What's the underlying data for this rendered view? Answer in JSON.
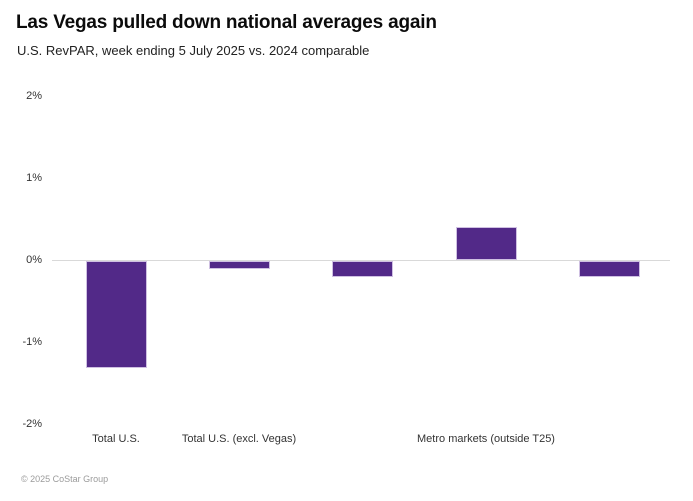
{
  "header": {
    "title": "Las Vegas pulled down national averages again",
    "subtitle": "U.S. RevPAR, week ending 5 July 2025 vs. 2024 comparable"
  },
  "footer": {
    "copyright": "© 2025 CoStar Group"
  },
  "colors": {
    "bar": "#522988",
    "bar_border": "#cfc0e2",
    "axis_line": "#d9d9d9",
    "title_text": "#0b0b0b",
    "tick_text": "#333333",
    "footer_text": "#9b9b9b",
    "background": "#ffffff"
  },
  "chart_data": {
    "type": "bar",
    "title": "Las Vegas pulled down national averages again",
    "subtitle": "U.S. RevPAR, week ending 5 July 2025 vs. 2024 comparable",
    "categories": [
      "Total U.S.",
      "Total U.S. (excl. Vegas)",
      "",
      "Metro markets (outside T25)",
      ""
    ],
    "values": [
      -1.3,
      -0.1,
      -0.2,
      0.4,
      -0.2
    ],
    "unit": "%",
    "xlabel": "",
    "ylabel": "",
    "ylim": [
      -2,
      2
    ],
    "yticks": [
      2,
      1,
      0,
      -1,
      -2
    ],
    "ytick_labels": [
      "2%",
      "1%",
      "0%",
      "-1%",
      "-2%"
    ],
    "grid": false,
    "legend": false,
    "bar_color": "#522988"
  }
}
